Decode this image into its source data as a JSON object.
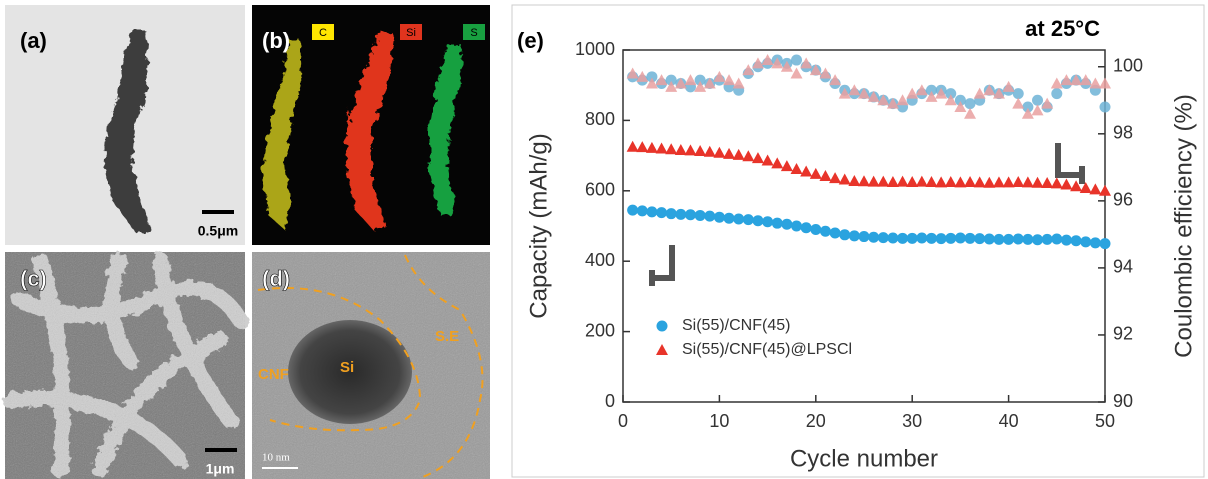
{
  "panels": [
    {
      "label": "(a)",
      "scale_bar": "0.5μm"
    },
    {
      "label": "(b)",
      "maps": [
        "C",
        "Si",
        "S"
      ]
    },
    {
      "label": "(c)",
      "scale_bar": "1μm"
    },
    {
      "label": "(d)",
      "scale_bar": "10 nm",
      "regions": [
        "CNF",
        "Si",
        "S.E"
      ]
    }
  ],
  "chart_data": {
    "type": "scatter",
    "panel_label": "(e)",
    "annotation": "at 25°C",
    "x_label": "Cycle number",
    "y_label": "Capacity (mAh/g)",
    "y2_label": "Coulombic efficiency (%)",
    "x": [
      1,
      2,
      3,
      4,
      5,
      6,
      7,
      8,
      9,
      10,
      11,
      12,
      13,
      14,
      15,
      16,
      17,
      18,
      19,
      20,
      21,
      22,
      23,
      24,
      25,
      26,
      27,
      28,
      29,
      30,
      31,
      32,
      33,
      34,
      35,
      36,
      37,
      38,
      39,
      40,
      41,
      42,
      43,
      44,
      45,
      46,
      47,
      48,
      49,
      50
    ],
    "series": [
      {
        "name": "Si(55)/CNF(45)",
        "color": "#2aa3df",
        "marker": "circle",
        "values": [
          545,
          543,
          540,
          538,
          535,
          533,
          532,
          530,
          528,
          525,
          522,
          520,
          518,
          515,
          512,
          508,
          505,
          500,
          495,
          490,
          485,
          480,
          475,
          472,
          470,
          468,
          467,
          466,
          465,
          465,
          466,
          465,
          464,
          465,
          466,
          465,
          464,
          463,
          462,
          462,
          463,
          462,
          461,
          462,
          463,
          460,
          458,
          455,
          452,
          450
        ],
        "y2_color": "#6db3d6",
        "y2_values": [
          99.7,
          99.6,
          99.7,
          99.5,
          99.6,
          99.5,
          99.4,
          99.6,
          99.5,
          99.6,
          99.4,
          99.3,
          99.8,
          100.0,
          100.1,
          100.2,
          100.1,
          100.2,
          100.0,
          99.9,
          99.7,
          99.5,
          99.3,
          99.2,
          99.2,
          99.1,
          99.0,
          98.9,
          98.8,
          99.0,
          99.2,
          99.3,
          99.3,
          99.2,
          99.0,
          98.9,
          99.0,
          99.3,
          99.2,
          99.3,
          99.2,
          98.8,
          99.0,
          98.8,
          99.2,
          99.5,
          99.6,
          99.5,
          99.3,
          98.8
        ]
      },
      {
        "name": "Si(55)/CNF(45)@LPSCl",
        "color": "#e8342a",
        "marker": "triangle",
        "values": [
          725,
          724,
          722,
          720,
          718,
          716,
          715,
          713,
          711,
          708,
          705,
          702,
          698,
          693,
          686,
          678,
          670,
          662,
          655,
          648,
          642,
          636,
          632,
          628,
          627,
          626,
          626,
          625,
          626,
          625,
          626,
          625,
          624,
          625,
          624,
          625,
          624,
          623,
          624,
          624,
          625,
          624,
          623,
          622,
          621,
          618,
          613,
          608,
          604,
          600
        ],
        "y2_color": "#e9a0a0",
        "y2_values": [
          99.8,
          99.7,
          99.5,
          99.6,
          99.4,
          99.5,
          99.6,
          99.4,
          99.5,
          99.7,
          99.6,
          99.5,
          99.9,
          100.1,
          100.2,
          100.1,
          100.0,
          99.8,
          100.1,
          99.9,
          99.8,
          99.6,
          99.2,
          99.3,
          99.2,
          99.1,
          99.0,
          98.9,
          99.0,
          99.2,
          99.3,
          99.1,
          99.2,
          99.0,
          98.8,
          98.6,
          99.2,
          99.3,
          99.2,
          99.4,
          98.9,
          98.6,
          98.7,
          98.9,
          99.5,
          99.6,
          99.6,
          99.6,
          99.5,
          99.5
        ]
      }
    ],
    "xlim": [
      0,
      50
    ],
    "xticks": [
      0,
      10,
      20,
      30,
      40,
      50
    ],
    "ylim": [
      0,
      1000
    ],
    "yticks": [
      0,
      200,
      400,
      600,
      800,
      1000
    ],
    "y2lim": [
      90,
      100.5
    ],
    "y2ticks": [
      90,
      92,
      94,
      96,
      98,
      100
    ]
  }
}
